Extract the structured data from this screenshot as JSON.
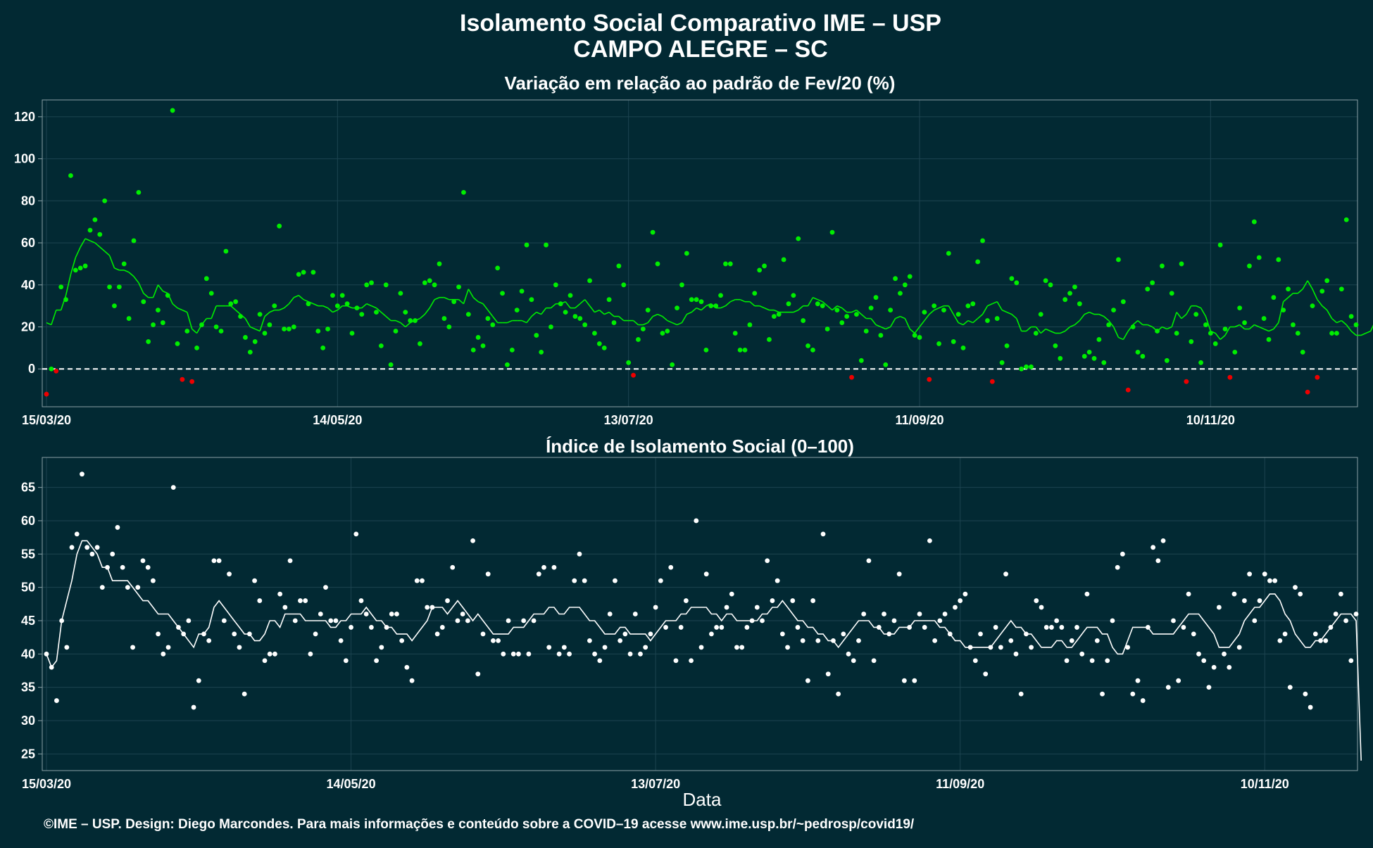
{
  "title_line1": "Isolamento Social Comparativo IME – USP",
  "title_line2": "CAMPO ALEGRE – SC",
  "xlabel": "Data",
  "caption": "©IME – USP. Design: Diego Marcondes. Para mais informações e conteúdo sobre a COVID–19 acesse www.ime.usp.br/~pedrosp/covid19/",
  "colors": {
    "background": "#022933",
    "positive": "#00ee00",
    "negative": "#ee0000",
    "index": "#ffffff",
    "grid": "#1d4450",
    "frame": "#8aa0a6"
  },
  "chart_data": [
    {
      "type": "scatter",
      "title": "Variação em relação ao padrão de Fev/20 (%)",
      "xlabel": "",
      "ylabel": "",
      "x_range": [
        "15/03/20",
        "30/11/20"
      ],
      "ylim": [
        -18,
        128
      ],
      "yticks": [
        0,
        20,
        40,
        60,
        80,
        100,
        120
      ],
      "xticks": [
        "15/03/20",
        "14/05/20",
        "13/07/20",
        "11/09/20",
        "10/11/20"
      ],
      "reference_line": 0,
      "grid": true,
      "point_color_rule": "green if value >= 0, red if value < 0",
      "series": [
        {
          "kind": "daily",
          "values": [
            -12,
            0,
            -1,
            39,
            33,
            92,
            47,
            48,
            49,
            66,
            71,
            64,
            80,
            39,
            30,
            39,
            50,
            24,
            61,
            84,
            32,
            13,
            21,
            28,
            22,
            35,
            123,
            12,
            -5,
            18,
            -6,
            10,
            21,
            43,
            36,
            20,
            18,
            56,
            31,
            32,
            25,
            15,
            8,
            13,
            26,
            17,
            21,
            30,
            68,
            19,
            19,
            20,
            45,
            46,
            31,
            46,
            18,
            10,
            19,
            35,
            30,
            35,
            31,
            17,
            29,
            26,
            40,
            41,
            27,
            11,
            40,
            2,
            18,
            36,
            27,
            23,
            23,
            12,
            41,
            42,
            40,
            50,
            24,
            20,
            32,
            39,
            84,
            26,
            9,
            15,
            11,
            24,
            21,
            48,
            36,
            2,
            9,
            28,
            37,
            59,
            33,
            16,
            8,
            59,
            20,
            40,
            31,
            27,
            35,
            25,
            24,
            21,
            42,
            17,
            12,
            10,
            33,
            22,
            49,
            40,
            3,
            -3,
            14,
            19,
            28,
            65,
            50,
            17,
            18,
            2,
            29,
            40,
            55,
            33,
            33,
            32,
            9,
            30,
            30,
            35,
            50,
            50,
            17,
            9,
            9,
            21,
            36,
            47,
            49,
            14,
            25,
            26,
            52,
            31,
            35,
            62,
            23,
            11,
            9,
            31,
            30,
            19,
            65,
            28,
            22,
            25,
            -4,
            26,
            4,
            18,
            29,
            34,
            16,
            2,
            28,
            43,
            36,
            40,
            44,
            16,
            15,
            27,
            -5,
            30,
            12,
            28,
            55,
            13,
            26,
            10,
            30,
            31,
            51,
            61,
            23,
            -6,
            24,
            3,
            11,
            43,
            41,
            0,
            1,
            1,
            17,
            26,
            42,
            40,
            11,
            5,
            33,
            36,
            39,
            31,
            6,
            8,
            5,
            14,
            3,
            21,
            28,
            52,
            32,
            -10,
            20,
            8,
            6,
            38,
            41,
            18,
            49,
            4,
            36,
            17,
            50,
            -6,
            13,
            26,
            3,
            21,
            17,
            12,
            59,
            19,
            -4,
            8,
            29,
            22,
            49,
            70,
            53,
            24,
            14,
            34,
            52,
            28,
            38,
            21,
            17,
            8,
            -11,
            30,
            -4,
            37,
            42,
            17,
            17,
            38,
            71,
            25,
            21
          ]
        },
        {
          "kind": "moving_average",
          "values": [
            22,
            21,
            28,
            28,
            35,
            45,
            53,
            58,
            62,
            61,
            60,
            58,
            56,
            54,
            48,
            47,
            47,
            46,
            44,
            41,
            36,
            34,
            34,
            40,
            37,
            36,
            31,
            29,
            28,
            27,
            19,
            17,
            21,
            24,
            24,
            30,
            30,
            30,
            30,
            28,
            26,
            24,
            20,
            19,
            18,
            25,
            27,
            28,
            28,
            29,
            31,
            34,
            35,
            33,
            32,
            31,
            30,
            30,
            29,
            27,
            28,
            30,
            30,
            29,
            29,
            29,
            31,
            30,
            29,
            27,
            25,
            23,
            23,
            22,
            20,
            22,
            23,
            24,
            26,
            29,
            33,
            34,
            34,
            33,
            33,
            33,
            31,
            38,
            34,
            32,
            31,
            28,
            25,
            22,
            22,
            22,
            23,
            23,
            23,
            22,
            25,
            27,
            26,
            29,
            29,
            31,
            31,
            32,
            29,
            29,
            31,
            33,
            30,
            27,
            28,
            26,
            27,
            25,
            25,
            23,
            23,
            23,
            21,
            21,
            22,
            25,
            26,
            25,
            23,
            22,
            21,
            22,
            26,
            27,
            29,
            28,
            30,
            31,
            29,
            29,
            30,
            32,
            33,
            33,
            32,
            32,
            30,
            30,
            29,
            28,
            28,
            27,
            27,
            27,
            27,
            28,
            30,
            30,
            34,
            33,
            32,
            30,
            28,
            30,
            29,
            27,
            27,
            28,
            26,
            24,
            24,
            21,
            20,
            19,
            20,
            24,
            25,
            24,
            19,
            17,
            20,
            23,
            26,
            28,
            29,
            30,
            30,
            26,
            22,
            21,
            23,
            22,
            24,
            26,
            30,
            31,
            32,
            28,
            27,
            26,
            24,
            18,
            18,
            20,
            20,
            17,
            19,
            18,
            17,
            17,
            18,
            20,
            21,
            23,
            26,
            27,
            26,
            26,
            25,
            23,
            20,
            15,
            14,
            18,
            21,
            23,
            21,
            21,
            20,
            18,
            20,
            19,
            20,
            27,
            24,
            26,
            30,
            30,
            29,
            25,
            18,
            17,
            14,
            16,
            20,
            20,
            21,
            19,
            19,
            21,
            20,
            19,
            18,
            19,
            22,
            32,
            34,
            36,
            36,
            38,
            42,
            38,
            33,
            30,
            28,
            24,
            22,
            23,
            21,
            18,
            16,
            16,
            17,
            18,
            23,
            29,
            34,
            32
          ]
        }
      ]
    },
    {
      "type": "scatter",
      "title": "Índice de Isolamento Social (0–100)",
      "xlabel": "Data",
      "ylabel": "",
      "x_range": [
        "15/03/20",
        "30/11/20"
      ],
      "ylim": [
        22.5,
        69.5
      ],
      "yticks": [
        25,
        30,
        35,
        40,
        45,
        50,
        55,
        60,
        65
      ],
      "xticks": [
        "15/03/20",
        "14/05/20",
        "13/07/20",
        "11/09/20",
        "10/11/20"
      ],
      "grid": true,
      "series": [
        {
          "kind": "daily",
          "values": [
            40,
            38,
            33,
            45,
            41,
            56,
            58,
            67,
            56,
            55,
            56,
            50,
            53,
            55,
            59,
            53,
            50,
            41,
            50,
            54,
            53,
            51,
            43,
            40,
            41,
            65,
            44,
            43,
            45,
            32,
            36,
            43,
            42,
            54,
            54,
            45,
            52,
            43,
            41,
            34,
            43,
            51,
            48,
            39,
            40,
            40,
            49,
            47,
            54,
            45,
            48,
            48,
            40,
            43,
            46,
            50,
            45,
            45,
            42,
            39,
            44,
            58,
            48,
            46,
            44,
            39,
            41,
            44,
            46,
            46,
            42,
            38,
            36,
            51,
            51,
            47,
            47,
            43,
            44,
            48,
            53,
            45,
            46,
            45,
            57,
            37,
            43,
            52,
            42,
            42,
            40,
            45,
            40,
            40,
            45,
            40,
            45,
            52,
            53,
            41,
            53,
            40,
            41,
            40,
            51,
            55,
            51,
            42,
            40,
            39,
            41,
            46,
            51,
            42,
            43,
            40,
            46,
            40,
            41,
            43,
            47,
            51,
            44,
            53,
            39,
            44,
            48,
            39,
            60,
            41,
            52,
            43,
            44,
            44,
            47,
            49,
            41,
            41,
            44,
            45,
            47,
            45,
            54,
            48,
            51,
            43,
            41,
            48,
            44,
            42,
            36,
            48,
            42,
            58,
            37,
            42,
            34,
            43,
            40,
            39,
            42,
            46,
            54,
            39,
            44,
            46,
            43,
            45,
            52,
            36,
            44,
            36,
            46,
            44,
            57,
            42,
            45,
            46,
            43,
            47,
            48,
            49,
            41,
            39,
            43,
            37,
            41,
            44,
            41,
            52,
            42,
            40,
            34,
            43,
            41,
            48,
            47,
            44,
            44,
            45,
            44,
            39,
            42,
            44,
            40,
            49,
            39,
            42,
            34,
            39,
            45,
            53,
            55,
            41,
            34,
            36,
            33,
            44,
            56,
            54,
            57,
            35,
            45,
            36,
            44,
            49,
            43,
            40,
            39,
            35,
            38,
            47,
            40,
            38,
            49,
            41,
            48,
            52,
            45,
            48,
            52,
            51,
            51,
            42,
            43,
            35,
            50,
            49,
            34,
            32,
            43,
            42,
            42,
            44,
            46,
            49,
            45,
            39,
            46
          ]
        },
        {
          "kind": "moving_average",
          "values": [
            40,
            38,
            39,
            45,
            48,
            51,
            55,
            57,
            57,
            56,
            55,
            53,
            53,
            51,
            51,
            51,
            51,
            50,
            49,
            48,
            48,
            47,
            46,
            46,
            46,
            45,
            44,
            43,
            42,
            41,
            43,
            43,
            44,
            47,
            48,
            47,
            46,
            45,
            44,
            43,
            43,
            42,
            42,
            43,
            45,
            45,
            44,
            46,
            46,
            46,
            46,
            45,
            45,
            45,
            45,
            45,
            44,
            44,
            45,
            45,
            46,
            46,
            46,
            47,
            46,
            45,
            45,
            44,
            44,
            43,
            43,
            43,
            42,
            43,
            44,
            45,
            47,
            47,
            47,
            46,
            47,
            48,
            47,
            46,
            45,
            46,
            45,
            44,
            43,
            43,
            43,
            43,
            44,
            44,
            44,
            45,
            46,
            46,
            46,
            47,
            47,
            46,
            46,
            47,
            47,
            47,
            46,
            45,
            45,
            44,
            43,
            43,
            43,
            44,
            44,
            43,
            43,
            43,
            43,
            42,
            43,
            44,
            45,
            45,
            45,
            46,
            46,
            47,
            47,
            47,
            47,
            46,
            46,
            45,
            46,
            46,
            45,
            45,
            45,
            45,
            45,
            46,
            46,
            47,
            47,
            48,
            47,
            46,
            45,
            45,
            44,
            44,
            43,
            43,
            42,
            42,
            41,
            42,
            43,
            44,
            45,
            45,
            45,
            44,
            44,
            43,
            43,
            43,
            44,
            44,
            44,
            45,
            45,
            45,
            45,
            45,
            44,
            44,
            43,
            42,
            42,
            41,
            41,
            41,
            41,
            41,
            41,
            42,
            43,
            44,
            45,
            44,
            44,
            43,
            43,
            42,
            41,
            41,
            41,
            42,
            42,
            41,
            41,
            42,
            43,
            44,
            44,
            44,
            43,
            43,
            41,
            40,
            40,
            42,
            44,
            44,
            44,
            44,
            43,
            43,
            43,
            43,
            43,
            44,
            45,
            46,
            46,
            46,
            45,
            44,
            43,
            41,
            41,
            41,
            42,
            43,
            45,
            46,
            47,
            47,
            48,
            49,
            49,
            48,
            46,
            45,
            43,
            42,
            41,
            41,
            42,
            42,
            43,
            44,
            45,
            46,
            46,
            46,
            45,
            24
          ]
        }
      ]
    }
  ]
}
